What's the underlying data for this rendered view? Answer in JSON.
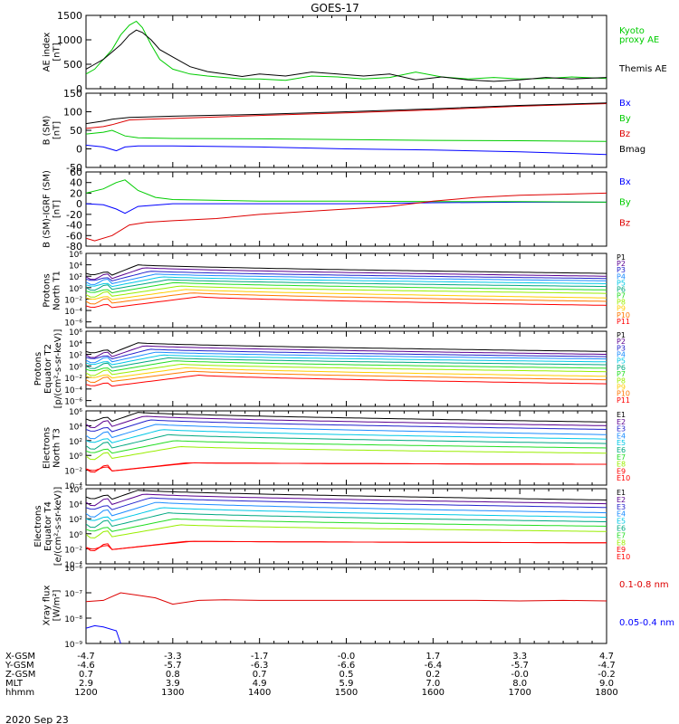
{
  "title": "GOES-17",
  "date": "2020 Sep 23",
  "x_hours": [
    12.0,
    18.0
  ],
  "colors": {
    "black": "#000000",
    "green": "#00cc00",
    "blue": "#0000ff",
    "red": "#dd0000",
    "P1": "#000000",
    "P2": "#5a0090",
    "P3": "#2222cc",
    "P4": "#1a8cff",
    "P5": "#00c8e6",
    "P6": "#00a880",
    "P7": "#22dd22",
    "P8": "#99ee00",
    "P9": "#ffcc00",
    "P10": "#ff7700",
    "P11": "#ff0000"
  },
  "ephemeris": {
    "labels": [
      "X-GSM",
      "Y-GSM",
      "Z-GSM",
      "MLT",
      "hhmm"
    ],
    "columns": [
      [
        "-4.7",
        "-4.6",
        "0.7",
        "2.9",
        "1200"
      ],
      [
        "-3.3",
        "-5.7",
        "0.8",
        "3.9",
        "1300"
      ],
      [
        "-1.7",
        "-6.3",
        "0.7",
        "4.9",
        "1400"
      ],
      [
        "-0.0",
        "-6.6",
        "0.5",
        "5.9",
        "1500"
      ],
      [
        "1.7",
        "-6.4",
        "0.2",
        "7.0",
        "1600"
      ],
      [
        "3.3",
        "-5.7",
        "-0.0",
        "8.0",
        "1700"
      ],
      [
        "4.7",
        "-4.7",
        "-0.2",
        "9.0",
        "1800"
      ]
    ]
  },
  "chart_data": [
    {
      "type": "line",
      "ylabel": [
        "AE index",
        "[nT]"
      ],
      "ylim": [
        0,
        1500
      ],
      "yticks": [
        0,
        500,
        1000,
        1500
      ],
      "legend": [
        {
          "text": "Kyoto",
          "color": "green"
        },
        {
          "text": "proxy AE",
          "color": "green"
        },
        {
          "text": "Themis AE",
          "color": "black"
        }
      ],
      "series": [
        {
          "name": "Kyoto proxy AE",
          "color": "green",
          "x": [
            12.0,
            12.1,
            12.2,
            12.3,
            12.4,
            12.5,
            12.58,
            12.65,
            12.75,
            12.85,
            13.0,
            13.2,
            13.4,
            13.6,
            13.8,
            14.0,
            14.3,
            14.6,
            14.9,
            15.2,
            15.5,
            15.8,
            16.1,
            16.4,
            16.7,
            17.0,
            17.3,
            17.6,
            18.0
          ],
          "y": [
            300,
            400,
            600,
            800,
            1100,
            1300,
            1380,
            1250,
            900,
            600,
            400,
            300,
            260,
            230,
            200,
            200,
            170,
            260,
            240,
            200,
            230,
            340,
            240,
            200,
            230,
            200,
            210,
            240,
            210
          ]
        },
        {
          "name": "Themis AE",
          "color": "black",
          "x": [
            12.0,
            12.1,
            12.2,
            12.3,
            12.4,
            12.5,
            12.58,
            12.65,
            12.75,
            12.85,
            13.0,
            13.2,
            13.4,
            13.6,
            13.8,
            14.0,
            14.3,
            14.6,
            14.9,
            15.2,
            15.5,
            15.8,
            16.1,
            16.4,
            16.7,
            17.0,
            17.3,
            17.6,
            18.0
          ],
          "y": [
            400,
            500,
            600,
            750,
            900,
            1100,
            1200,
            1150,
            1000,
            800,
            650,
            450,
            350,
            300,
            250,
            300,
            260,
            340,
            300,
            260,
            300,
            180,
            240,
            180,
            150,
            180,
            230,
            200,
            230
          ]
        }
      ]
    },
    {
      "type": "line",
      "ylabel": [
        "B (SM)",
        "[nT]"
      ],
      "ylim": [
        -50,
        150
      ],
      "yticks": [
        -50,
        0,
        50,
        100,
        150
      ],
      "legend": [
        {
          "text": "Bx",
          "color": "blue"
        },
        {
          "text": "By",
          "color": "green"
        },
        {
          "text": "Bz",
          "color": "red"
        },
        {
          "text": "Bmag",
          "color": "black"
        }
      ],
      "series": [
        {
          "name": "Bx",
          "color": "blue",
          "x": [
            12.0,
            12.2,
            12.35,
            12.45,
            12.6,
            13.0,
            14.0,
            15.0,
            16.0,
            17.0,
            18.0
          ],
          "y": [
            10,
            5,
            -5,
            5,
            8,
            8,
            5,
            0,
            -3,
            -8,
            -15
          ]
        },
        {
          "name": "By",
          "color": "green",
          "x": [
            12.0,
            12.2,
            12.3,
            12.45,
            12.6,
            13.0,
            14.0,
            15.0,
            16.0,
            17.0,
            18.0
          ],
          "y": [
            40,
            45,
            50,
            35,
            30,
            28,
            27,
            25,
            23,
            22,
            20
          ]
        },
        {
          "name": "Bz",
          "color": "red",
          "x": [
            12.0,
            12.2,
            12.3,
            12.5,
            12.7,
            13.0,
            14.0,
            15.0,
            16.0,
            17.0,
            18.0
          ],
          "y": [
            55,
            60,
            65,
            78,
            80,
            82,
            90,
            97,
            105,
            115,
            122
          ]
        },
        {
          "name": "Bmag",
          "color": "black",
          "x": [
            12.0,
            12.2,
            12.3,
            12.5,
            12.7,
            13.0,
            14.0,
            15.0,
            16.0,
            17.0,
            18.0
          ],
          "y": [
            68,
            75,
            80,
            85,
            86,
            88,
            93,
            100,
            108,
            117,
            124
          ]
        }
      ]
    },
    {
      "type": "line",
      "ylabel": [
        "B (SM)-IGRF (SM)",
        "[nT]"
      ],
      "ylim": [
        -80,
        60
      ],
      "yticks": [
        -80,
        -60,
        -40,
        -20,
        0,
        20,
        40,
        60
      ],
      "legend": [
        {
          "text": "Bx",
          "color": "blue"
        },
        {
          "text": "By",
          "color": "green"
        },
        {
          "text": "Bz",
          "color": "red"
        }
      ],
      "series": [
        {
          "name": "Bx",
          "color": "blue",
          "x": [
            12.0,
            12.2,
            12.35,
            12.45,
            12.6,
            13.0,
            14.0,
            15.0,
            16.0,
            17.0,
            18.0
          ],
          "y": [
            0,
            -2,
            -10,
            -18,
            -5,
            0,
            0,
            0,
            2,
            3,
            3
          ]
        },
        {
          "name": "By",
          "color": "green",
          "x": [
            12.0,
            12.2,
            12.35,
            12.45,
            12.6,
            12.8,
            13.0,
            14.0,
            15.0,
            16.0,
            17.0,
            18.0
          ],
          "y": [
            20,
            28,
            40,
            45,
            25,
            12,
            8,
            5,
            5,
            4,
            4,
            3
          ]
        },
        {
          "name": "Bz",
          "color": "red",
          "x": [
            12.0,
            12.1,
            12.3,
            12.5,
            12.7,
            13.0,
            13.5,
            14.0,
            15.0,
            15.5,
            16.0,
            16.5,
            17.0,
            17.5,
            18.0
          ],
          "y": [
            -65,
            -70,
            -60,
            -40,
            -35,
            -32,
            -28,
            -20,
            -10,
            -5,
            5,
            12,
            16,
            18,
            20
          ]
        }
      ]
    },
    {
      "type": "line",
      "log": true,
      "ylabel": [
        "Protons",
        "North T1"
      ],
      "ylim": [
        -7,
        6
      ],
      "ytick_labels": [
        "10⁻⁶",
        "10⁻⁴",
        "10⁻²",
        "10⁰",
        "10²",
        "10⁴",
        "10⁶"
      ],
      "ytick_exps": [
        -6,
        -4,
        -2,
        0,
        2,
        4,
        6
      ],
      "channels": [
        "P1",
        "P2",
        "P3",
        "P4",
        "P5",
        "P6",
        "P7",
        "P8",
        "P9",
        "P10",
        "P11"
      ],
      "base": [
        2.8,
        2.2,
        1.8,
        1.3,
        0.8,
        0.3,
        -0.3,
        -0.9,
        -1.5,
        -2.1,
        -2.9
      ],
      "peak": [
        4.0,
        3.5,
        2.9,
        2.4,
        1.9,
        1.4,
        0.9,
        0.3,
        -0.3,
        -0.9,
        -1.6
      ],
      "end": [
        2.5,
        2.0,
        1.6,
        1.2,
        0.7,
        0.2,
        -0.4,
        -1.0,
        -1.8,
        -2.4,
        -3.1
      ]
    },
    {
      "type": "line",
      "log": true,
      "ylabel": [
        "Protons",
        "Equator T2",
        "[p/(cm²-s-sr-keV)]"
      ],
      "ylim": [
        -7,
        6
      ],
      "ytick_labels": [
        "10⁻⁶",
        "10⁻⁴",
        "10⁻²",
        "10⁰",
        "10²",
        "10⁴",
        "10⁶"
      ],
      "ytick_exps": [
        -6,
        -4,
        -2,
        0,
        2,
        4,
        6
      ],
      "channels": [
        "P1",
        "P2",
        "P3",
        "P4",
        "P5",
        "P6",
        "P7",
        "P8",
        "P9",
        "P10",
        "P11"
      ],
      "base": [
        2.8,
        2.2,
        1.8,
        1.3,
        0.8,
        0.3,
        -0.3,
        -0.9,
        -1.5,
        -2.1,
        -2.9
      ],
      "peak": [
        4.0,
        3.5,
        2.9,
        2.4,
        1.9,
        1.4,
        0.9,
        0.3,
        -0.3,
        -0.9,
        -1.6
      ],
      "end": [
        2.5,
        2.0,
        1.6,
        1.2,
        0.7,
        0.2,
        -0.4,
        -1.0,
        -1.8,
        -2.4,
        -3.1
      ]
    },
    {
      "type": "line",
      "log": true,
      "ylabel": [
        "Electrons",
        "North T3"
      ],
      "ylim": [
        -4,
        6
      ],
      "ytick_labels": [
        "10⁻⁴",
        "10⁻²",
        "10⁰",
        "10²",
        "10⁴",
        "10⁶"
      ],
      "ytick_exps": [
        -4,
        -2,
        0,
        2,
        4,
        6
      ],
      "channels": [
        "E1",
        "E2",
        "E3",
        "E4",
        "E5",
        "E6",
        "E7",
        "E8",
        "E9",
        "E10"
      ],
      "base": [
        5.2,
        4.5,
        3.8,
        3.0,
        2.3,
        1.6,
        0.9,
        0.2,
        -1.5,
        -1.5
      ],
      "peak": [
        5.8,
        5.3,
        4.8,
        4.2,
        3.5,
        2.8,
        2.0,
        1.2,
        -1.0,
        -1.0
      ],
      "end": [
        4.5,
        4.0,
        3.5,
        2.8,
        2.2,
        1.6,
        1.0,
        0.3,
        -1.2,
        -1.2
      ]
    },
    {
      "type": "line",
      "log": true,
      "ylabel": [
        "Electrons",
        "Equator T4",
        "[e/(cm²-s-sr-keV)]"
      ],
      "ylim": [
        -4,
        6
      ],
      "ytick_labels": [
        "10⁻⁴",
        "10⁻²",
        "10⁰",
        "10²",
        "10⁴",
        "10⁶"
      ],
      "ytick_exps": [
        -4,
        -2,
        0,
        2,
        4,
        6
      ],
      "channels": [
        "E1",
        "E2",
        "E3",
        "E4",
        "E5",
        "E6",
        "E7",
        "E8",
        "E9",
        "E10"
      ],
      "base": [
        5.2,
        4.5,
        3.8,
        3.0,
        2.3,
        1.6,
        0.9,
        0.2,
        -1.5,
        -1.5
      ],
      "peak": [
        5.8,
        5.3,
        4.8,
        4.2,
        3.5,
        2.8,
        2.0,
        1.2,
        -1.0,
        -1.0
      ],
      "end": [
        4.5,
        4.0,
        3.5,
        2.8,
        2.2,
        1.6,
        1.0,
        0.3,
        -1.2,
        -1.2
      ]
    },
    {
      "type": "line",
      "log": true,
      "ylabel": [
        "Xray flux",
        "[W/m²]"
      ],
      "ylim": [
        -9,
        -6
      ],
      "ytick_labels": [
        "10⁻⁹",
        "10⁻⁸",
        "10⁻⁷",
        "10⁻⁶"
      ],
      "ytick_exps": [
        -9,
        -8,
        -7,
        -6
      ],
      "legend": [
        {
          "text": "0.1-0.8 nm",
          "color": "red"
        },
        {
          "text": "0.05-0.4 nm",
          "color": "blue"
        }
      ],
      "series": [
        {
          "name": "0.1-0.8 nm",
          "color": "red",
          "x": [
            12.0,
            12.2,
            12.4,
            12.6,
            12.8,
            13.0,
            13.3,
            13.6,
            14.0,
            14.5,
            15.0,
            15.5,
            16.0,
            16.5,
            17.0,
            17.5,
            18.0
          ],
          "y": [
            -7.35,
            -7.3,
            -7.0,
            -7.1,
            -7.2,
            -7.45,
            -7.3,
            -7.28,
            -7.3,
            -7.3,
            -7.3,
            -7.3,
            -7.3,
            -7.3,
            -7.32,
            -7.3,
            -7.32
          ]
        },
        {
          "name": "0.05-0.4 nm",
          "color": "blue",
          "x": [
            12.0,
            12.1,
            12.2,
            12.35,
            12.4
          ],
          "y": [
            -8.4,
            -8.3,
            -8.35,
            -8.5,
            -9.0
          ]
        }
      ]
    }
  ]
}
